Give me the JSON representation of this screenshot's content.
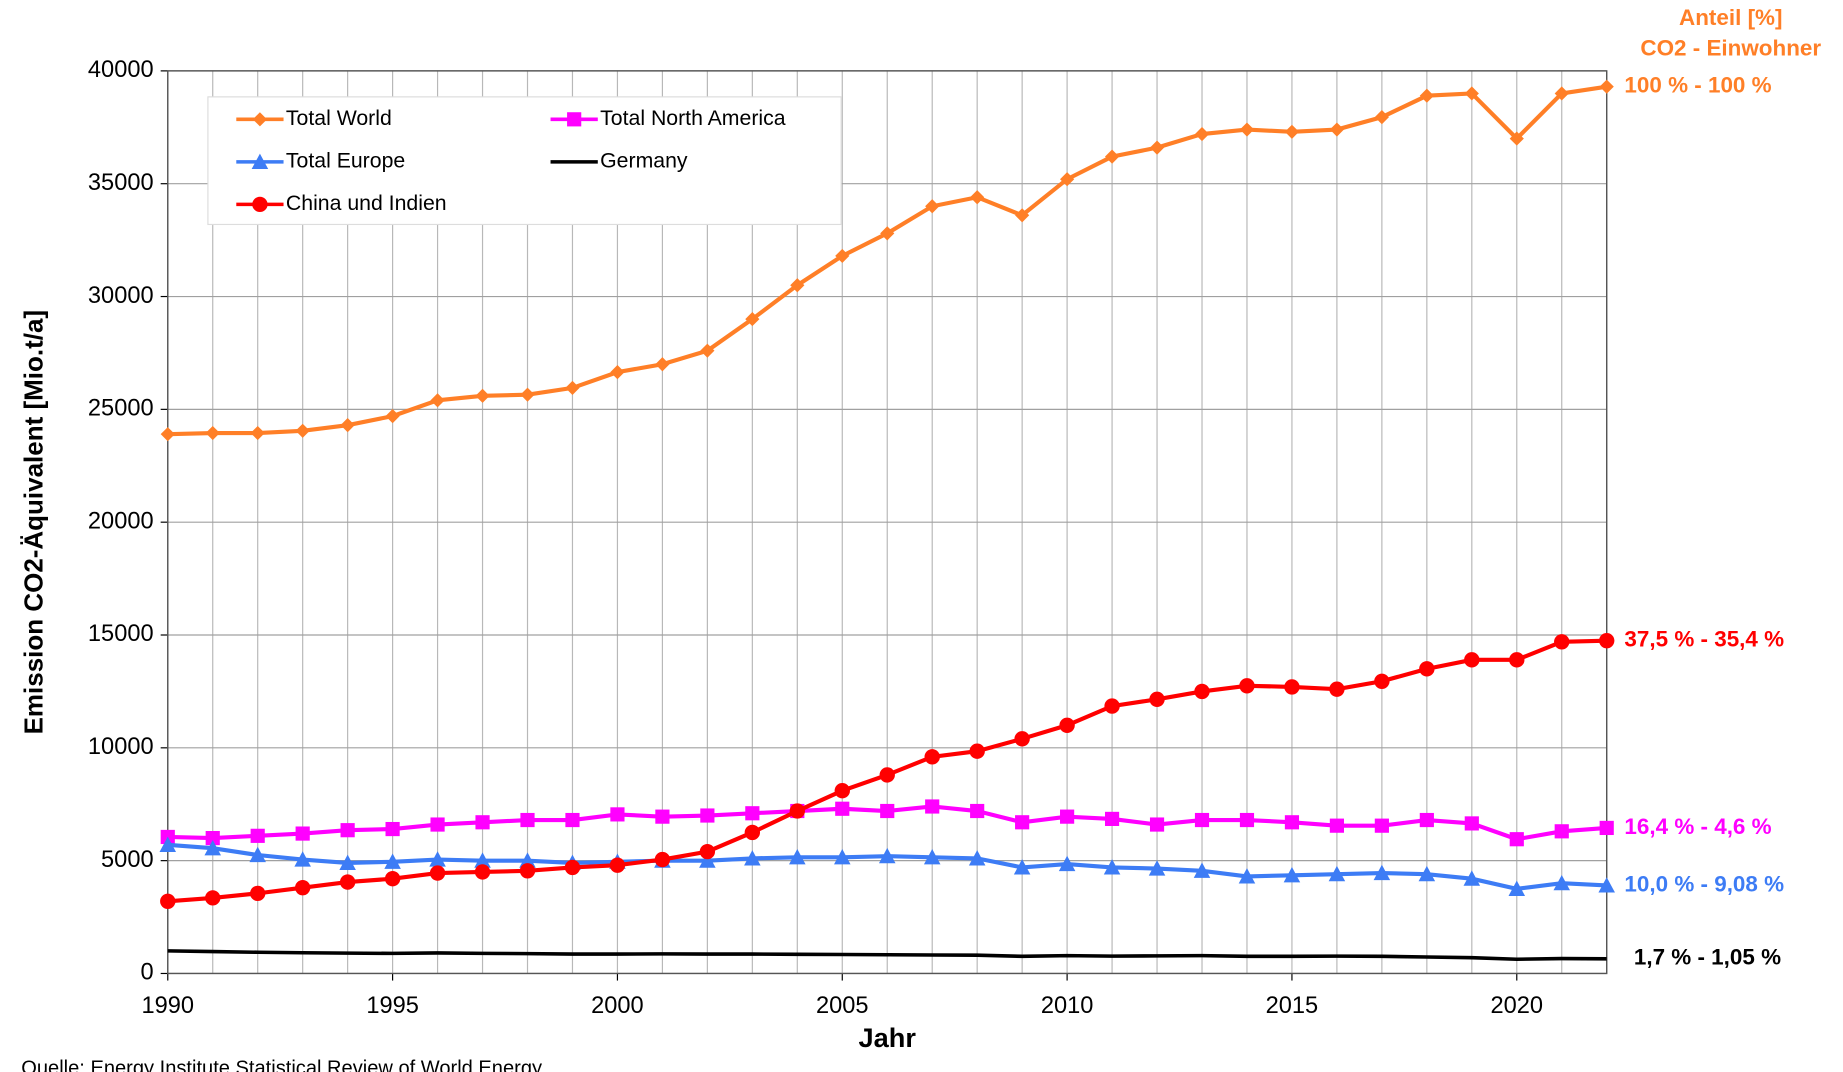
{
  "chart_data": {
    "type": "line",
    "y_label": "Emission CO2-Äquivalent [Mio.t/a]",
    "x_label": "Jahr",
    "source": "Quelle: Energy Institute Statistical Review of World Energy",
    "right_header": [
      "Anteil [%]",
      "CO2 - Einwohner"
    ],
    "right_header_color": "#ff7f27",
    "x": [
      1990,
      1991,
      1992,
      1993,
      1994,
      1995,
      1996,
      1997,
      1998,
      1999,
      2000,
      2001,
      2002,
      2003,
      2004,
      2005,
      2006,
      2007,
      2008,
      2009,
      2010,
      2011,
      2012,
      2013,
      2014,
      2015,
      2016,
      2017,
      2018,
      2019,
      2020,
      2021,
      2022
    ],
    "xlim": [
      1990,
      2022
    ],
    "xticks": [
      1990,
      1995,
      2000,
      2005,
      2010,
      2015,
      2020
    ],
    "ylim": [
      0,
      40000
    ],
    "yticks": [
      0,
      5000,
      10000,
      15000,
      20000,
      25000,
      30000,
      35000,
      40000
    ],
    "grid": true,
    "series": [
      {
        "name": "Total World",
        "color": "#ff7f27",
        "marker": "diamond",
        "end_label": "100 % -  100 %",
        "values": [
          23900,
          23950,
          23950,
          24050,
          24300,
          24700,
          25400,
          25600,
          25650,
          25950,
          26650,
          27000,
          27600,
          29000,
          30500,
          31800,
          32800,
          34000,
          34400,
          33600,
          35200,
          36200,
          36600,
          37200,
          37400,
          37300,
          37400,
          37950,
          38900,
          39000,
          37000,
          39000,
          39300
        ]
      },
      {
        "name": "Total North America",
        "color": "#ff00ff",
        "marker": "square",
        "end_label": "16,4 % -  4,6 %",
        "values": [
          6050,
          6000,
          6100,
          6200,
          6350,
          6400,
          6600,
          6700,
          6800,
          6800,
          7050,
          6950,
          7000,
          7100,
          7200,
          7300,
          7200,
          7400,
          7200,
          6700,
          6950,
          6850,
          6600,
          6800,
          6800,
          6700,
          6550,
          6550,
          6800,
          6650,
          5950,
          6300,
          6450
        ]
      },
      {
        "name": "Total Europe",
        "color": "#3d7cf5",
        "marker": "triangle",
        "end_label": "10,0 % -  9,08 %",
        "values": [
          5700,
          5550,
          5250,
          5050,
          4900,
          4950,
          5050,
          5000,
          5000,
          4900,
          4950,
          5000,
          5000,
          5100,
          5150,
          5150,
          5200,
          5150,
          5100,
          4700,
          4850,
          4700,
          4650,
          4550,
          4300,
          4350,
          4400,
          4450,
          4400,
          4200,
          3750,
          4000,
          3900
        ]
      },
      {
        "name": "Germany",
        "color": "#000000",
        "marker": "none",
        "end_label": "1,7 %  - 1,05 %",
        "values": [
          1000,
          970,
          940,
          920,
          900,
          890,
          910,
          890,
          880,
          860,
          860,
          870,
          860,
          860,
          850,
          840,
          830,
          820,
          810,
          760,
          790,
          770,
          780,
          790,
          760,
          760,
          770,
          760,
          730,
          700,
          630,
          660,
          650
        ]
      },
      {
        "name": "China und Indien",
        "color": "#ff0000",
        "marker": "circle",
        "end_label": "37,5 % -  35,4 %",
        "values": [
          3200,
          3350,
          3550,
          3800,
          4050,
          4200,
          4450,
          4500,
          4550,
          4700,
          4800,
          5050,
          5400,
          6250,
          7200,
          8100,
          8800,
          9600,
          9850,
          10400,
          11000,
          11850,
          12150,
          12500,
          12750,
          12700,
          12600,
          12950,
          13500,
          13900,
          13900,
          14700,
          14750
        ]
      }
    ]
  }
}
